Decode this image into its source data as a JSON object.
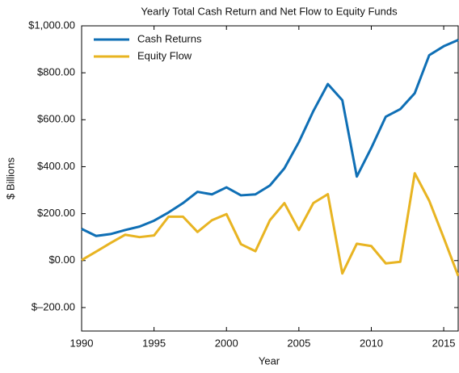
{
  "chart_data": {
    "type": "line",
    "title": "Yearly Total Cash Return and Net Flow to Equity Funds",
    "x_label": "Year",
    "y_label": "$ Billions",
    "x": [
      1990,
      1991,
      1992,
      1993,
      1994,
      1995,
      1996,
      1997,
      1998,
      1999,
      2000,
      2001,
      2002,
      2003,
      2004,
      2005,
      2006,
      2007,
      2008,
      2009,
      2010,
      2011,
      2012,
      2013,
      2014,
      2015,
      2016
    ],
    "series": [
      {
        "name": "Cash Returns",
        "color": "#0f6fb5",
        "values": [
          135,
          105,
          113,
          130,
          145,
          170,
          205,
          245,
          293,
          282,
          312,
          278,
          282,
          320,
          393,
          505,
          637,
          752,
          683,
          358,
          480,
          613,
          645,
          713,
          875,
          913,
          940
        ]
      },
      {
        "name": "Equity Flow",
        "color": "#e8b422",
        "values": [
          2,
          38,
          75,
          110,
          100,
          107,
          187,
          187,
          122,
          172,
          198,
          70,
          40,
          172,
          245,
          130,
          245,
          283,
          -55,
          72,
          62,
          -12,
          -5,
          372,
          255,
          97,
          -65
        ]
      }
    ],
    "xlim": [
      1990,
      2016
    ],
    "xticks": [
      1990,
      1995,
      2000,
      2005,
      2010,
      2015
    ],
    "ylim": [
      -300,
      1000
    ],
    "yticks": [
      {
        "value": -200,
        "label": "$–200.00"
      },
      {
        "value": 0,
        "label": "$0.00"
      },
      {
        "value": 200,
        "label": "$200.00"
      },
      {
        "value": 400,
        "label": "$400.00"
      },
      {
        "value": 600,
        "label": "$600.00"
      },
      {
        "value": 800,
        "label": "$800.00"
      },
      {
        "value": 1000,
        "label": "$1,000.00"
      }
    ],
    "legend": "upper left",
    "grid": false
  }
}
